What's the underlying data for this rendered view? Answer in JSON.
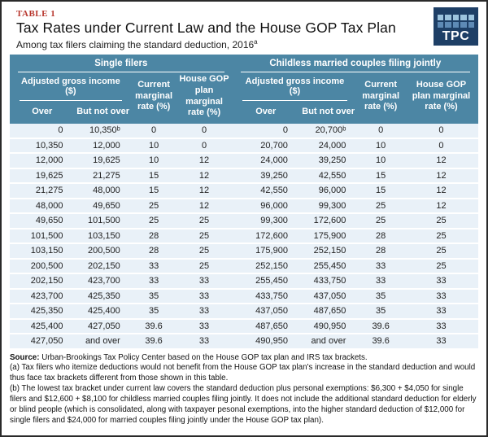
{
  "figure": {
    "label": "TABLE 1",
    "title": "Tax Rates under Current Law and the House GOP Tax Plan",
    "subtitle": "Among tax filers claiming the standard deduction, 2016",
    "subtitle_footnote_marker": "a",
    "logo_text": "TPC"
  },
  "colors": {
    "header_blue": "#4c86a4",
    "row_blue": "#e9f1f8",
    "label_red": "#b8372e",
    "logo_navy": "#1e3f66",
    "logo_square_light": "#9dc4de",
    "logo_square_mid": "#5e8ab5"
  },
  "chart_data": {
    "type": "table",
    "title": "Tax Rates under Current Law and the House GOP Tax Plan",
    "subtitle": "Among tax filers claiming the standard deduction, 2016",
    "groups": [
      {
        "label": "Single filers"
      },
      {
        "label": "Childless married couples filing jointly"
      }
    ],
    "column_headers": {
      "agi": "Adjusted gross income ($)",
      "over": "Over",
      "but_not_over": "But not over",
      "current_rate": "Current marginal rate (%)",
      "house_gop_rate": "House GOP plan marginal rate (%)"
    },
    "rows": [
      [
        "0",
        "10,350ᵇ",
        "0",
        "0",
        "0",
        "20,700ᵇ",
        "0",
        "0"
      ],
      [
        "10,350",
        "12,000",
        "10",
        "0",
        "20,700",
        "24,000",
        "10",
        "0"
      ],
      [
        "12,000",
        "19,625",
        "10",
        "12",
        "24,000",
        "39,250",
        "10",
        "12"
      ],
      [
        "19,625",
        "21,275",
        "15",
        "12",
        "39,250",
        "42,550",
        "15",
        "12"
      ],
      [
        "21,275",
        "48,000",
        "15",
        "12",
        "42,550",
        "96,000",
        "15",
        "12"
      ],
      [
        "48,000",
        "49,650",
        "25",
        "12",
        "96,000",
        "99,300",
        "25",
        "12"
      ],
      [
        "49,650",
        "101,500",
        "25",
        "25",
        "99,300",
        "172,600",
        "25",
        "25"
      ],
      [
        "101,500",
        "103,150",
        "28",
        "25",
        "172,600",
        "175,900",
        "28",
        "25"
      ],
      [
        "103,150",
        "200,500",
        "28",
        "25",
        "175,900",
        "252,150",
        "28",
        "25"
      ],
      [
        "200,500",
        "202,150",
        "33",
        "25",
        "252,150",
        "255,450",
        "33",
        "25"
      ],
      [
        "202,150",
        "423,700",
        "33",
        "33",
        "255,450",
        "433,750",
        "33",
        "33"
      ],
      [
        "423,700",
        "425,350",
        "35",
        "33",
        "433,750",
        "437,050",
        "35",
        "33"
      ],
      [
        "425,350",
        "425,400",
        "35",
        "33",
        "437,050",
        "487,650",
        "35",
        "33"
      ],
      [
        "425,400",
        "427,050",
        "39.6",
        "33",
        "487,650",
        "490,950",
        "39.6",
        "33"
      ],
      [
        "427,050",
        "and over",
        "39.6",
        "33",
        "490,950",
        "and over",
        "39.6",
        "33"
      ]
    ]
  },
  "notes": {
    "source_label": "Source:",
    "source_text": " Urban-Brookings Tax Policy Center based on the House GOP tax plan and IRS tax brackets.",
    "note_a": "(a) Tax filers who itemize deductions would not benefit from the House GOP tax plan's increase in the standard deduction and would thus face tax brackets different from those shown in this table.",
    "note_b": "(b) The lowest tax bracket under current law covers the standard deduction plus personal exemptions: $6,300 + $4,050 for single filers and $12,600 + $8,100 for childless married couples filing jointly. It does not include the additional standard deduction for elderly or blind people (which is consolidated, along with taxpayer pesonal exemptions, into the higher standard deduction of $12,000 for single filers and $24,000 for married couples filing jointly under the House GOP tax plan)."
  }
}
